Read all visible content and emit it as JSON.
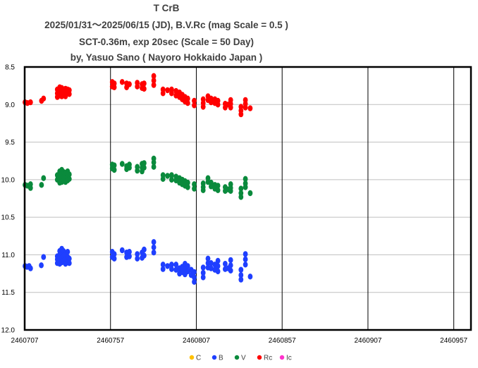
{
  "chart_data": {
    "type": "scatter",
    "title_lines": [
      "T CrB",
      "2025/01/31～2025/06/15 (JD),  B.V.Rc (mag Scale = 0.5 )",
      "SCT-0.36m, exp 20sec (Scale = 50 Day)",
      "by, Yasuo Sano ( Nayoro Hokkaido Japan )"
    ],
    "xlabel": "",
    "ylabel": "",
    "xlim": [
      2460707,
      2460967
    ],
    "ylim": [
      8.5,
      12.0
    ],
    "y_inverted": true,
    "x_ticks": [
      2460707,
      2460757,
      2460807,
      2460857,
      2460907,
      2460957
    ],
    "x_tick_labels": [
      "2460707",
      "2460757",
      "2460807",
      "2460857",
      "2460907",
      "2460957"
    ],
    "y_ticks": [
      8.5,
      9.0,
      9.5,
      10.0,
      10.5,
      11.0,
      11.5,
      12.0
    ],
    "y_tick_labels": [
      "8.5",
      "9.0",
      "9.5",
      "10.0",
      "10.5",
      "11.0",
      "11.5",
      "12.0"
    ],
    "grid": {
      "horizontal": true,
      "vertical": true
    },
    "legend_position": "bottom",
    "series": [
      {
        "name": "C",
        "color": "#FFC000",
        "points": []
      },
      {
        "name": "B",
        "color": "#1F3FFF",
        "points": [
          [
            2460707.2,
            11.15
          ],
          [
            2460708.4,
            11.16
          ],
          [
            2460709.6,
            11.15
          ],
          [
            2460710.4,
            11.18
          ],
          [
            2460716.7,
            11.14
          ],
          [
            2460718.0,
            11.03
          ],
          [
            2460726.0,
            11.02
          ],
          [
            2460726.0,
            11.06
          ],
          [
            2460726.0,
            11.11
          ],
          [
            2460727.4,
            10.95
          ],
          [
            2460727.4,
            11.0
          ],
          [
            2460727.4,
            11.06
          ],
          [
            2460727.4,
            11.12
          ],
          [
            2460728.6,
            10.92
          ],
          [
            2460728.6,
            10.98
          ],
          [
            2460728.6,
            11.04
          ],
          [
            2460728.6,
            11.1
          ],
          [
            2460729.6,
            10.95
          ],
          [
            2460729.6,
            11.02
          ],
          [
            2460729.6,
            11.08
          ],
          [
            2460730.8,
            11.0
          ],
          [
            2460730.8,
            11.06
          ],
          [
            2460730.8,
            11.12
          ],
          [
            2460732.0,
            10.96
          ],
          [
            2460732.0,
            11.03
          ],
          [
            2460732.0,
            11.1
          ],
          [
            2460733.0,
            11.05
          ],
          [
            2460733.0,
            11.11
          ],
          [
            2460758.0,
            10.96
          ],
          [
            2460758.0,
            11.03
          ],
          [
            2460759.2,
            10.99
          ],
          [
            2460759.2,
            11.05
          ],
          [
            2460763.8,
            10.94
          ],
          [
            2460766.4,
            10.97
          ],
          [
            2460766.4,
            11.03
          ],
          [
            2460768.0,
            10.96
          ],
          [
            2460768.0,
            11.02
          ],
          [
            2460772.6,
            10.99
          ],
          [
            2460772.6,
            11.05
          ],
          [
            2460775.4,
            10.97
          ],
          [
            2460775.4,
            11.04
          ],
          [
            2460776.6,
            10.93
          ],
          [
            2460776.6,
            11.01
          ],
          [
            2460782.2,
            10.83
          ],
          [
            2460782.2,
            10.9
          ],
          [
            2460782.2,
            10.97
          ],
          [
            2460787.6,
            11.13
          ],
          [
            2460787.6,
            11.19
          ],
          [
            2460790.2,
            11.15
          ],
          [
            2460792.6,
            11.13
          ],
          [
            2460792.6,
            11.19
          ],
          [
            2460795.2,
            11.13
          ],
          [
            2460795.2,
            11.2
          ],
          [
            2460797.2,
            11.18
          ],
          [
            2460797.2,
            11.25
          ],
          [
            2460798.8,
            11.16
          ],
          [
            2460798.8,
            11.23
          ],
          [
            2460800.4,
            11.12
          ],
          [
            2460800.4,
            11.19
          ],
          [
            2460800.4,
            11.26
          ],
          [
            2460802.0,
            11.15
          ],
          [
            2460802.0,
            11.22
          ],
          [
            2460804.0,
            11.2
          ],
          [
            2460804.0,
            11.27
          ],
          [
            2460805.8,
            11.23
          ],
          [
            2460805.8,
            11.3
          ],
          [
            2460805.8,
            11.36
          ],
          [
            2460811.0,
            11.17
          ],
          [
            2460811.0,
            11.24
          ],
          [
            2460811.0,
            11.3
          ],
          [
            2460813.8,
            11.05
          ],
          [
            2460813.8,
            11.11
          ],
          [
            2460813.8,
            11.17
          ],
          [
            2460815.6,
            11.11
          ],
          [
            2460815.6,
            11.18
          ],
          [
            2460817.8,
            11.13
          ],
          [
            2460817.8,
            11.2
          ],
          [
            2460819.6,
            11.08
          ],
          [
            2460819.6,
            11.15
          ],
          [
            2460819.6,
            11.22
          ],
          [
            2460823.8,
            11.12
          ],
          [
            2460823.8,
            11.19
          ],
          [
            2460825.6,
            11.18
          ],
          [
            2460827.0,
            11.07
          ],
          [
            2460827.0,
            11.14
          ],
          [
            2460827.0,
            11.21
          ],
          [
            2460833.0,
            11.2
          ],
          [
            2460833.0,
            11.27
          ],
          [
            2460833.0,
            11.33
          ],
          [
            2460835.6,
            10.99
          ],
          [
            2460835.6,
            11.06
          ],
          [
            2460835.6,
            11.13
          ],
          [
            2460838.4,
            11.29
          ]
        ]
      },
      {
        "name": "V",
        "color": "#0A8A3C",
        "points": [
          [
            2460707.2,
            10.07
          ],
          [
            2460708.6,
            10.08
          ],
          [
            2460710.4,
            10.06
          ],
          [
            2460710.4,
            10.11
          ],
          [
            2460716.8,
            10.07
          ],
          [
            2460718.0,
            9.98
          ],
          [
            2460726.0,
            9.94
          ],
          [
            2460726.0,
            10.0
          ],
          [
            2460727.4,
            9.89
          ],
          [
            2460727.4,
            9.94
          ],
          [
            2460727.4,
            10.0
          ],
          [
            2460727.4,
            10.04
          ],
          [
            2460728.6,
            9.87
          ],
          [
            2460728.6,
            9.92
          ],
          [
            2460728.6,
            9.98
          ],
          [
            2460728.6,
            10.03
          ],
          [
            2460729.8,
            9.9
          ],
          [
            2460729.8,
            9.96
          ],
          [
            2460729.8,
            10.01
          ],
          [
            2460730.8,
            9.92
          ],
          [
            2460730.8,
            9.98
          ],
          [
            2460730.8,
            10.03
          ],
          [
            2460732.0,
            9.89
          ],
          [
            2460732.0,
            9.95
          ],
          [
            2460732.0,
            10.01
          ],
          [
            2460733.0,
            9.93
          ],
          [
            2460733.0,
            9.99
          ],
          [
            2460758.0,
            9.8
          ],
          [
            2460758.0,
            9.85
          ],
          [
            2460759.2,
            9.81
          ],
          [
            2460759.2,
            9.87
          ],
          [
            2460763.8,
            9.79
          ],
          [
            2460766.4,
            9.82
          ],
          [
            2460766.4,
            9.86
          ],
          [
            2460768.0,
            9.8
          ],
          [
            2460768.0,
            9.84
          ],
          [
            2460772.6,
            9.83
          ],
          [
            2460772.6,
            9.88
          ],
          [
            2460775.4,
            9.79
          ],
          [
            2460775.4,
            9.84
          ],
          [
            2460775.4,
            9.89
          ],
          [
            2460776.6,
            9.78
          ],
          [
            2460776.6,
            9.84
          ],
          [
            2460782.2,
            9.72
          ],
          [
            2460782.2,
            9.77
          ],
          [
            2460782.2,
            9.83
          ],
          [
            2460787.6,
            9.94
          ],
          [
            2460787.6,
            9.99
          ],
          [
            2460790.2,
            9.95
          ],
          [
            2460792.6,
            9.94
          ],
          [
            2460792.6,
            10.0
          ],
          [
            2460795.2,
            9.96
          ],
          [
            2460795.2,
            10.01
          ],
          [
            2460797.2,
            9.98
          ],
          [
            2460797.2,
            10.04
          ],
          [
            2460798.8,
            10.0
          ],
          [
            2460798.8,
            10.06
          ],
          [
            2460800.4,
            10.02
          ],
          [
            2460800.4,
            10.08
          ],
          [
            2460802.0,
            10.04
          ],
          [
            2460802.0,
            10.1
          ],
          [
            2460805.8,
            10.06
          ],
          [
            2460805.8,
            10.12
          ],
          [
            2460811.0,
            10.05
          ],
          [
            2460811.0,
            10.1
          ],
          [
            2460811.0,
            10.14
          ],
          [
            2460813.8,
            9.98
          ],
          [
            2460813.8,
            10.03
          ],
          [
            2460815.6,
            10.04
          ],
          [
            2460815.6,
            10.09
          ],
          [
            2460817.8,
            10.07
          ],
          [
            2460817.8,
            10.12
          ],
          [
            2460819.6,
            10.08
          ],
          [
            2460819.6,
            10.14
          ],
          [
            2460823.8,
            10.1
          ],
          [
            2460823.8,
            10.15
          ],
          [
            2460825.6,
            10.13
          ],
          [
            2460827.0,
            10.06
          ],
          [
            2460827.0,
            10.11
          ],
          [
            2460827.0,
            10.15
          ],
          [
            2460833.0,
            10.12
          ],
          [
            2460833.0,
            10.18
          ],
          [
            2460833.0,
            10.23
          ],
          [
            2460835.6,
            9.99
          ],
          [
            2460835.6,
            10.05
          ],
          [
            2460835.6,
            10.1
          ],
          [
            2460838.4,
            10.18
          ]
        ]
      },
      {
        "name": "Rc",
        "color": "#FF0000",
        "points": [
          [
            2460707.2,
            8.97
          ],
          [
            2460708.6,
            8.98
          ],
          [
            2460710.4,
            8.97
          ],
          [
            2460716.8,
            8.95
          ],
          [
            2460718.0,
            8.92
          ],
          [
            2460726.0,
            8.8
          ],
          [
            2460726.0,
            8.85
          ],
          [
            2460726.0,
            8.9
          ],
          [
            2460727.4,
            8.77
          ],
          [
            2460727.4,
            8.82
          ],
          [
            2460727.4,
            8.88
          ],
          [
            2460728.6,
            8.78
          ],
          [
            2460728.6,
            8.83
          ],
          [
            2460728.6,
            8.89
          ],
          [
            2460729.8,
            8.8
          ],
          [
            2460729.8,
            8.85
          ],
          [
            2460730.8,
            8.79
          ],
          [
            2460730.8,
            8.84
          ],
          [
            2460730.8,
            8.89
          ],
          [
            2460732.0,
            8.8
          ],
          [
            2460732.0,
            8.85
          ],
          [
            2460733.0,
            8.81
          ],
          [
            2460733.0,
            8.86
          ],
          [
            2460758.0,
            8.7
          ],
          [
            2460758.0,
            8.76
          ],
          [
            2460759.2,
            8.72
          ],
          [
            2460759.2,
            8.77
          ],
          [
            2460763.8,
            8.7
          ],
          [
            2460766.4,
            8.72
          ],
          [
            2460766.4,
            8.77
          ],
          [
            2460768.0,
            8.73
          ],
          [
            2460772.6,
            8.71
          ],
          [
            2460772.6,
            8.76
          ],
          [
            2460775.4,
            8.73
          ],
          [
            2460775.4,
            8.78
          ],
          [
            2460776.6,
            8.72
          ],
          [
            2460776.6,
            8.79
          ],
          [
            2460782.2,
            8.62
          ],
          [
            2460782.2,
            8.68
          ],
          [
            2460782.2,
            8.74
          ],
          [
            2460787.6,
            8.8
          ],
          [
            2460787.6,
            8.85
          ],
          [
            2460790.2,
            8.81
          ],
          [
            2460792.6,
            8.8
          ],
          [
            2460792.6,
            8.85
          ],
          [
            2460795.2,
            8.82
          ],
          [
            2460795.2,
            8.88
          ],
          [
            2460797.2,
            8.84
          ],
          [
            2460797.2,
            8.9
          ],
          [
            2460798.8,
            8.87
          ],
          [
            2460798.8,
            8.93
          ],
          [
            2460800.4,
            8.9
          ],
          [
            2460800.4,
            8.96
          ],
          [
            2460802.0,
            8.92
          ],
          [
            2460802.0,
            8.98
          ],
          [
            2460805.8,
            8.95
          ],
          [
            2460805.8,
            9.01
          ],
          [
            2460811.0,
            8.93
          ],
          [
            2460811.0,
            8.98
          ],
          [
            2460811.0,
            9.03
          ],
          [
            2460813.8,
            8.89
          ],
          [
            2460813.8,
            8.94
          ],
          [
            2460815.6,
            8.92
          ],
          [
            2460815.6,
            8.97
          ],
          [
            2460817.8,
            8.93
          ],
          [
            2460817.8,
            8.98
          ],
          [
            2460819.6,
            8.95
          ],
          [
            2460819.6,
            9.0
          ],
          [
            2460823.8,
            8.99
          ],
          [
            2460823.8,
            9.04
          ],
          [
            2460825.6,
            9.0
          ],
          [
            2460827.0,
            8.94
          ],
          [
            2460827.0,
            8.99
          ],
          [
            2460827.0,
            9.04
          ],
          [
            2460833.0,
            9.03
          ],
          [
            2460833.0,
            9.08
          ],
          [
            2460833.0,
            9.13
          ],
          [
            2460835.6,
            8.94
          ],
          [
            2460835.6,
            8.99
          ],
          [
            2460835.6,
            9.04
          ],
          [
            2460838.4,
            9.05
          ]
        ]
      },
      {
        "name": "Ic",
        "color": "#FF33CC",
        "points": []
      }
    ]
  }
}
